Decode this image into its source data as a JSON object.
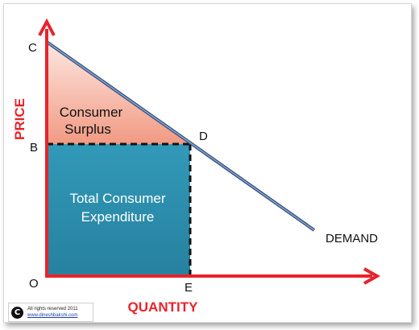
{
  "labels": {
    "y_axis": "PRICE",
    "x_axis": "QUANTITY",
    "point_c": "C",
    "point_b": "B",
    "point_d": "D",
    "point_o": "O",
    "point_e": "E",
    "demand": "DEMAND"
  },
  "regions": {
    "surplus_line1": "Consumer",
    "surplus_line2": "Surplus",
    "expenditure_line1": "Total Consumer",
    "expenditure_line2": "Expenditure"
  },
  "footer": {
    "symbol": "C",
    "rights": "All rights reserved 2011",
    "url": "www.dineshbakshi.com"
  },
  "colors": {
    "axis": "#e8232b",
    "demand_line": "#5a78a6",
    "surplus_fill": "#f4a38f",
    "expenditure_fill": "#2e93b1"
  }
}
